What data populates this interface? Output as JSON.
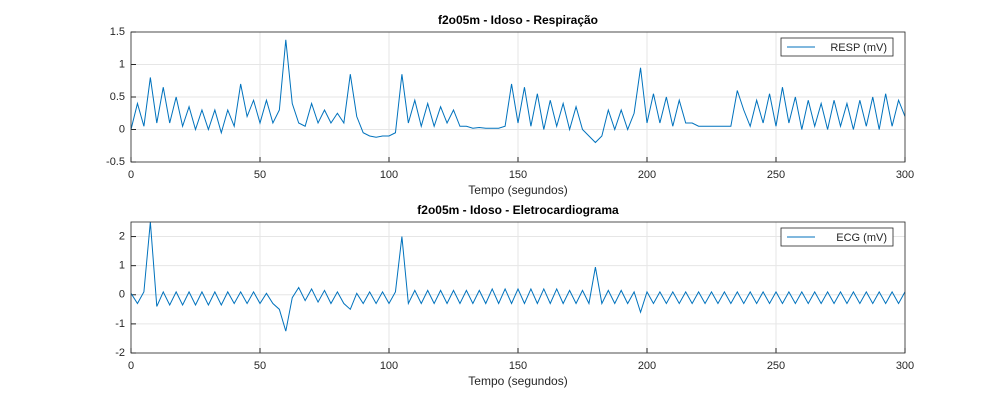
{
  "chart_data": [
    {
      "type": "line",
      "title": "f2o05m - Idoso - Respiração",
      "xlabel": "Tempo (segundos)",
      "x": [
        0,
        2.5,
        5,
        7.5,
        10,
        12.5,
        15,
        17.5,
        20,
        22.5,
        25,
        27.5,
        30,
        32.5,
        35,
        37.5,
        40,
        42.5,
        45,
        47.5,
        50,
        52.5,
        55,
        57.5,
        60,
        62.5,
        65,
        67.5,
        70,
        72.5,
        75,
        77.5,
        80,
        82.5,
        85,
        87.5,
        90,
        92.5,
        95,
        97.5,
        100,
        102.5,
        105,
        107.5,
        110,
        112.5,
        115,
        117.5,
        120,
        122.5,
        125,
        127.5,
        130,
        132.5,
        135,
        137.5,
        140,
        142.5,
        145,
        147.5,
        150,
        152.5,
        155,
        157.5,
        160,
        162.5,
        165,
        167.5,
        170,
        172.5,
        175,
        177.5,
        180,
        182.5,
        185,
        187.5,
        190,
        192.5,
        195,
        197.5,
        200,
        202.5,
        205,
        207.5,
        210,
        212.5,
        215,
        217.5,
        220,
        222.5,
        225,
        227.5,
        230,
        232.5,
        235,
        237.5,
        240,
        242.5,
        245,
        247.5,
        250,
        252.5,
        255,
        257.5,
        260,
        262.5,
        265,
        267.5,
        270,
        272.5,
        275,
        277.5,
        280,
        282.5,
        285,
        287.5,
        290,
        292.5,
        295,
        297.5,
        300
      ],
      "series": [
        {
          "name": "RESP (mV)",
          "color": "#0072bd",
          "values": [
            0,
            0.4,
            0.05,
            0.8,
            0.1,
            0.65,
            0.1,
            0.5,
            0.05,
            0.35,
            0,
            0.3,
            0,
            0.3,
            -0.05,
            0.3,
            0.05,
            0.7,
            0.2,
            0.45,
            0.1,
            0.45,
            0.1,
            0.3,
            1.38,
            0.4,
            0.1,
            0.05,
            0.4,
            0.1,
            0.3,
            0.1,
            0.25,
            0.1,
            0.85,
            0.2,
            -0.05,
            -0.1,
            -0.12,
            -0.1,
            -0.1,
            -0.05,
            0.85,
            0.1,
            0.45,
            0.05,
            0.4,
            0.05,
            0.35,
            0.1,
            0.3,
            0.05,
            0.05,
            0.02,
            0.03,
            0.02,
            0.02,
            0.02,
            0.05,
            0.7,
            0.1,
            0.65,
            0.05,
            0.55,
            0,
            0.45,
            0.05,
            0.4,
            0,
            0.35,
            0,
            -0.1,
            -0.2,
            -0.1,
            0.3,
            0,
            0.3,
            0,
            0.25,
            0.95,
            0.1,
            0.55,
            0.1,
            0.5,
            0.05,
            0.45,
            0.1,
            0.1,
            0.05,
            0.05,
            0.05,
            0.05,
            0.05,
            0.05,
            0.6,
            0.3,
            0.05,
            0.45,
            0.1,
            0.55,
            0.05,
            0.65,
            0.1,
            0.5,
            0,
            0.45,
            0.05,
            0.4,
            0,
            0.45,
            0.05,
            0.4,
            0,
            0.45,
            0.05,
            0.5,
            0,
            0.55,
            0.05,
            0.45,
            0.2
          ]
        }
      ],
      "xlim": [
        0,
        300
      ],
      "xticks": [
        0,
        50,
        100,
        150,
        200,
        250,
        300
      ],
      "ylim": [
        -0.5,
        1.5
      ],
      "yticks": [
        -0.5,
        0,
        0.5,
        1,
        1.5
      ],
      "grid": true,
      "legend": "upper right"
    },
    {
      "type": "line",
      "title": "f2o05m - Idoso - Eletrocardiograma",
      "xlabel": "Tempo (segundos)",
      "x": [
        0,
        2.5,
        5,
        7.5,
        10,
        12.5,
        15,
        17.5,
        20,
        22.5,
        25,
        27.5,
        30,
        32.5,
        35,
        37.5,
        40,
        42.5,
        45,
        47.5,
        50,
        52.5,
        55,
        57.5,
        60,
        62.5,
        65,
        67.5,
        70,
        72.5,
        75,
        77.5,
        80,
        82.5,
        85,
        87.5,
        90,
        92.5,
        95,
        97.5,
        100,
        102.5,
        105,
        107.5,
        110,
        112.5,
        115,
        117.5,
        120,
        122.5,
        125,
        127.5,
        130,
        132.5,
        135,
        137.5,
        140,
        142.5,
        145,
        147.5,
        150,
        152.5,
        155,
        157.5,
        160,
        162.5,
        165,
        167.5,
        170,
        172.5,
        175,
        177.5,
        180,
        182.5,
        185,
        187.5,
        190,
        192.5,
        195,
        197.5,
        200,
        202.5,
        205,
        207.5,
        210,
        212.5,
        215,
        217.5,
        220,
        222.5,
        225,
        227.5,
        230,
        232.5,
        235,
        237.5,
        240,
        242.5,
        245,
        247.5,
        250,
        252.5,
        255,
        257.5,
        260,
        262.5,
        265,
        267.5,
        270,
        272.5,
        275,
        277.5,
        280,
        282.5,
        285,
        287.5,
        290,
        292.5,
        295,
        297.5,
        300
      ],
      "series": [
        {
          "name": "ECG (mV)",
          "color": "#0072bd",
          "values": [
            0.05,
            -0.3,
            0.1,
            2.5,
            -0.4,
            0.1,
            -0.35,
            0.1,
            -0.35,
            0.1,
            -0.35,
            0.1,
            -0.35,
            0.1,
            -0.35,
            0.1,
            -0.3,
            0.1,
            -0.3,
            0.1,
            -0.3,
            0.05,
            -0.3,
            -0.5,
            -1.25,
            -0.1,
            0.25,
            -0.2,
            0.2,
            -0.25,
            0.15,
            -0.3,
            0.1,
            -0.3,
            -0.5,
            0.05,
            -0.3,
            0.1,
            -0.3,
            0.1,
            -0.3,
            0.1,
            2.0,
            -0.3,
            0.15,
            -0.3,
            0.15,
            -0.3,
            0.15,
            -0.3,
            0.15,
            -0.3,
            0.15,
            -0.3,
            0.15,
            -0.3,
            0.2,
            -0.3,
            0.2,
            -0.3,
            0.2,
            -0.3,
            0.2,
            -0.3,
            0.2,
            -0.3,
            0.2,
            -0.3,
            0.15,
            -0.3,
            0.15,
            -0.3,
            0.95,
            -0.3,
            0.15,
            -0.3,
            0.15,
            -0.3,
            0.1,
            -0.6,
            0.1,
            -0.3,
            0.1,
            -0.3,
            0.1,
            -0.3,
            0.1,
            -0.3,
            0.1,
            -0.3,
            0.1,
            -0.3,
            0.1,
            -0.3,
            0.1,
            -0.3,
            0.1,
            -0.3,
            0.1,
            -0.3,
            0.1,
            -0.3,
            0.1,
            -0.3,
            0.1,
            -0.3,
            0.1,
            -0.3,
            0.1,
            -0.3,
            0.1,
            -0.3,
            0.1,
            -0.3,
            0.1,
            -0.3,
            0.1,
            -0.3,
            0.1,
            -0.3,
            0.1
          ]
        }
      ],
      "xlim": [
        0,
        300
      ],
      "xticks": [
        0,
        50,
        100,
        150,
        200,
        250,
        300
      ],
      "ylim": [
        -2,
        2.5
      ],
      "yticks": [
        -2,
        -1,
        0,
        1,
        2
      ],
      "grid": true,
      "legend": "upper right"
    }
  ]
}
